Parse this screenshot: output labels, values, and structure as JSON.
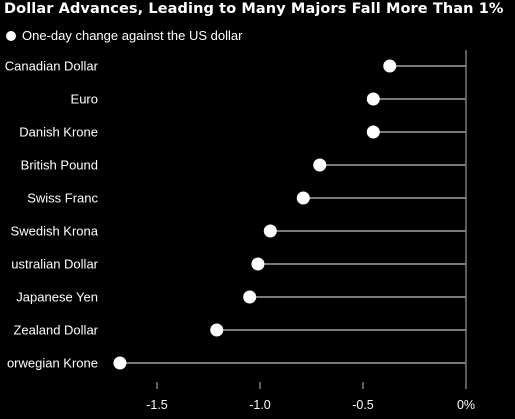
{
  "chart_data": {
    "type": "scatter",
    "title": "Dollar Advances, Leading to Many Majors Fall More Than 1%",
    "legend": [
      {
        "label": "One-day change against the US dollar",
        "marker": "white-circle",
        "placement": "top-left"
      }
    ],
    "categories": [
      "Canadian Dollar",
      "Euro",
      "Danish Krone",
      "British Pound",
      "Swiss Franc",
      "Swedish Krona",
      "Australian Dollar",
      "Japanese Yen",
      "New Zealand Dollar",
      "Norwegian Krone"
    ],
    "category_labels_visible": [
      "Canadian Dollar",
      "Euro",
      "Danish Krone",
      "British Pound",
      "Swiss Franc",
      "Swedish Krona",
      "ustralian Dollar",
      "Japanese Yen",
      "Zealand Dollar",
      "orwegian Krone"
    ],
    "series": [
      {
        "values": [
          -0.37,
          -0.45,
          -0.45,
          -0.71,
          -0.79,
          -0.95,
          -1.01,
          -1.05,
          -1.21,
          -1.68
        ]
      }
    ],
    "xlim": [
      -1.72,
      0.0
    ],
    "xticks": [
      -1.5,
      -1.0,
      -0.5,
      0
    ],
    "xtick_labels": [
      "-1.5",
      "-1.0",
      "-0.5",
      "0%"
    ],
    "xlabel": "",
    "ylabel": "",
    "grid": false,
    "colors": {
      "background": "#000000",
      "marker": "#ffffff",
      "stem": "#7a7a7a",
      "axis": "#7a7a7a",
      "text": "#ffffff"
    }
  }
}
